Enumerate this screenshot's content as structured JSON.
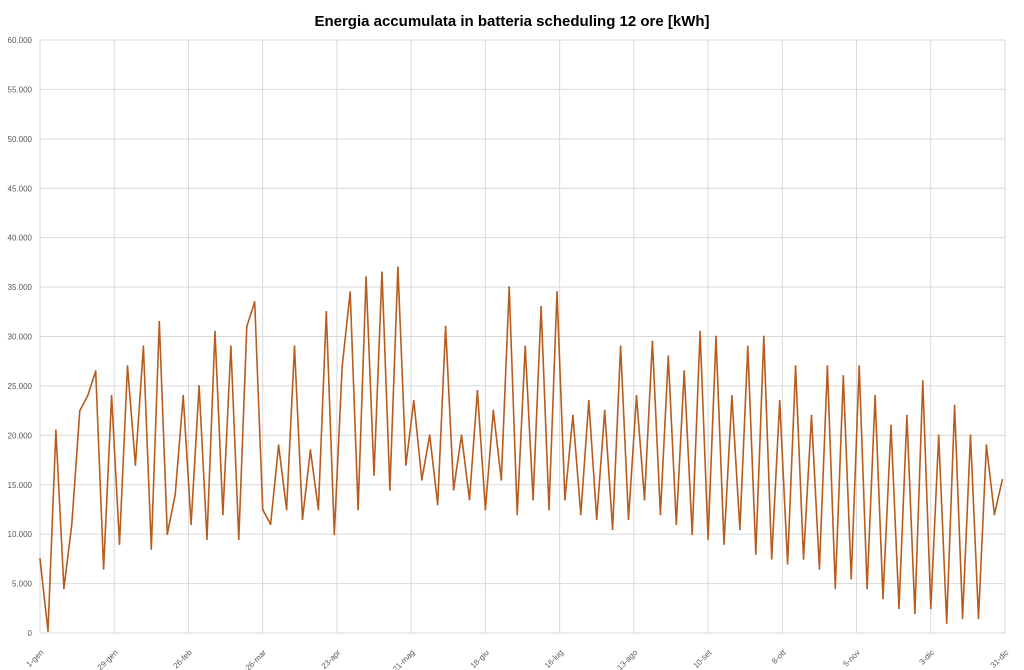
{
  "chart_data": {
    "type": "line",
    "title": "Energia accumulata in batteria scheduling 12 ore [kWh]",
    "xlabel": "",
    "ylabel": "",
    "ylim": [
      0,
      60000
    ],
    "y_ticks": [
      0,
      5000,
      10000,
      15000,
      20000,
      25000,
      30000,
      35000,
      40000,
      45000,
      50000,
      55000,
      60000
    ],
    "y_tick_labels": [
      "0",
      "5.000",
      "10.000",
      "15.000",
      "20.000",
      "25.000",
      "30.000",
      "35.000",
      "40.000",
      "45.000",
      "50.000",
      "55.000",
      "60.000"
    ],
    "x_tick_labels": [
      "1-gen",
      "29-gen",
      "26-feb",
      "26-mar",
      "23-apr",
      "21-mag",
      "18-giu",
      "16-lug",
      "13-ago",
      "10-set",
      "8-ott",
      "5-nov",
      "3-dic",
      "31-dic"
    ],
    "x_tick_days": [
      1,
      29,
      57,
      85,
      113,
      141,
      169,
      197,
      225,
      253,
      281,
      309,
      337,
      365
    ],
    "grid": true,
    "legend": "none",
    "series": [
      {
        "color": "#b85c1e",
        "x": [
          1,
          4,
          7,
          10,
          13,
          16,
          19,
          22,
          25,
          28,
          31,
          34,
          37,
          40,
          43,
          46,
          49,
          52,
          55,
          58,
          61,
          64,
          67,
          70,
          73,
          76,
          79,
          82,
          85,
          88,
          91,
          94,
          97,
          100,
          103,
          106,
          109,
          112,
          115,
          118,
          121,
          124,
          127,
          130,
          133,
          136,
          139,
          142,
          145,
          148,
          151,
          154,
          157,
          160,
          163,
          166,
          169,
          172,
          175,
          178,
          181,
          184,
          187,
          190,
          193,
          196,
          199,
          202,
          205,
          208,
          211,
          214,
          217,
          220,
          223,
          226,
          229,
          232,
          235,
          238,
          241,
          244,
          247,
          250,
          253,
          256,
          259,
          262,
          265,
          268,
          271,
          274,
          277,
          280,
          283,
          286,
          289,
          292,
          295,
          298,
          301,
          304,
          307,
          310,
          313,
          316,
          319,
          322,
          325,
          328,
          331,
          334,
          337,
          340,
          343,
          346,
          349,
          352,
          355,
          358,
          361,
          364
        ],
        "values": [
          7500,
          200,
          20500,
          4500,
          11000,
          22500,
          24000,
          26500,
          6500,
          24000,
          9000,
          27000,
          17000,
          29000,
          8500,
          31500,
          10000,
          14000,
          24000,
          11000,
          25000,
          9500,
          30500,
          12000,
          29000,
          9500,
          31000,
          33500,
          12500,
          11000,
          19000,
          12500,
          29000,
          11500,
          18500,
          12500,
          32500,
          10000,
          27000,
          34500,
          12500,
          36000,
          16000,
          36500,
          14500,
          37000,
          17000,
          23500,
          15500,
          20000,
          13000,
          31000,
          14500,
          20000,
          13500,
          24500,
          12500,
          22500,
          15500,
          35000,
          12000,
          29000,
          13500,
          33000,
          12500,
          34500,
          13500,
          22000,
          12000,
          23500,
          11500,
          22500,
          10500,
          29000,
          11500,
          24000,
          13500,
          29500,
          12000,
          28000,
          11000,
          26500,
          10000,
          30500,
          9500,
          30000,
          9000,
          24000,
          10500,
          29000,
          8000,
          30000,
          7500,
          23500,
          7000,
          27000,
          7500,
          22000,
          6500,
          27000,
          4500,
          26000,
          5500,
          27000,
          4500,
          24000,
          3500,
          21000,
          2500,
          22000,
          2000,
          25500,
          2500,
          20000,
          1000,
          23000,
          1500,
          20000,
          1500,
          19000,
          12000,
          15500
        ]
      }
    ]
  }
}
